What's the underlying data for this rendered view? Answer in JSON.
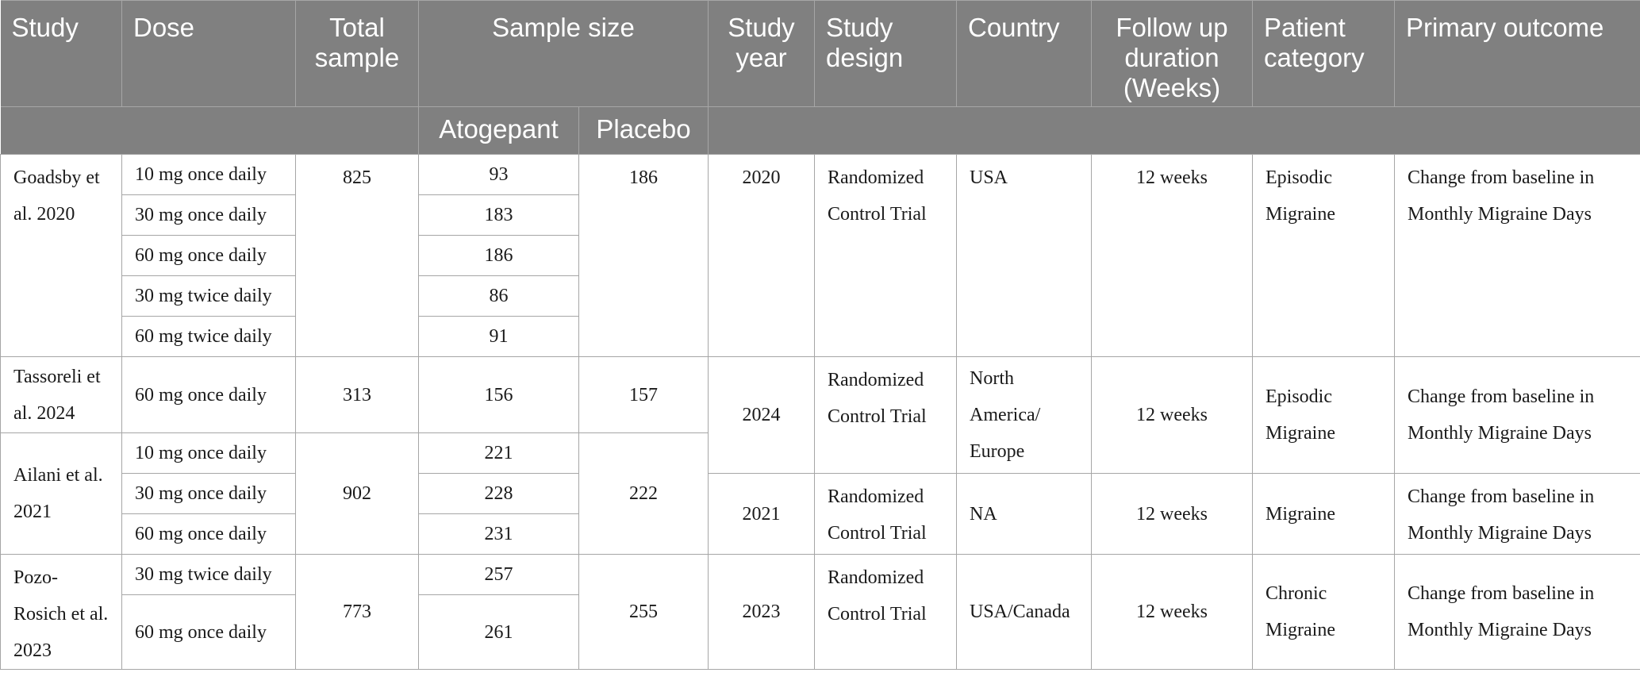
{
  "headers": {
    "study": "Study",
    "dose": "Dose",
    "total_sample": "Total sample",
    "sample_size": "Sample size",
    "study_year": "Study year",
    "study_design": "Study design",
    "country": "Country",
    "follow_up": "Follow up duration (Weeks)",
    "patient_category": "Patient category",
    "primary_outcome": "Primary outcome",
    "atogepant": "Atogepant",
    "placebo": "Placebo"
  },
  "studies": {
    "goadsby": {
      "name": "Goadsby et al. 2020",
      "doses": [
        "10 mg once daily",
        "30 mg once daily",
        "60 mg once daily",
        "30 mg twice daily",
        "60 mg twice daily"
      ],
      "total": "825",
      "atogepant": [
        "93",
        "183",
        "186",
        "86",
        "91"
      ],
      "placebo": "186",
      "year": "2020",
      "design": "Randomized Control Trial",
      "country": "USA",
      "follow_up": "12 weeks",
      "category": "Episodic Migraine",
      "outcome": "Change from baseline in Monthly Migraine Days"
    },
    "tassoreli": {
      "name": "Tassoreli et al. 2024",
      "doses": [
        "60 mg once daily"
      ],
      "total": "313",
      "atogepant": [
        "156"
      ],
      "placebo": "157",
      "year": "2024",
      "design": "Randomized Control Trial",
      "country": "North America/ Europe",
      "follow_up": "12 weeks",
      "category": "Episodic Migraine",
      "outcome": "Change from baseline in Monthly Migraine Days"
    },
    "ailani": {
      "name": "Ailani et al. 2021",
      "doses": [
        "10 mg once daily",
        "30 mg once daily",
        "60 mg once daily"
      ],
      "total": "902",
      "atogepant": [
        "221",
        "228",
        "231"
      ],
      "placebo": "222",
      "year": "2021",
      "design": "Randomized Control Trial",
      "country": "NA",
      "follow_up": "12 weeks",
      "category": "Migraine",
      "outcome": "Change from baseline in Monthly Migraine Days"
    },
    "pozo": {
      "name": "Pozo-Rosich et al. 2023",
      "doses": [
        "30 mg twice daily",
        "60 mg once daily"
      ],
      "total": "773",
      "atogepant": [
        "257",
        "261"
      ],
      "placebo": "255",
      "year": "2023",
      "design": "Randomized Control Trial",
      "country": "USA/Canada",
      "follow_up": "12 weeks",
      "category": "Chronic Migraine",
      "outcome": "Change from baseline in Monthly Migraine Days"
    }
  },
  "colors": {
    "header_bg": "#808080",
    "header_text": "#ffffff",
    "grid": "#a6a6a6"
  }
}
